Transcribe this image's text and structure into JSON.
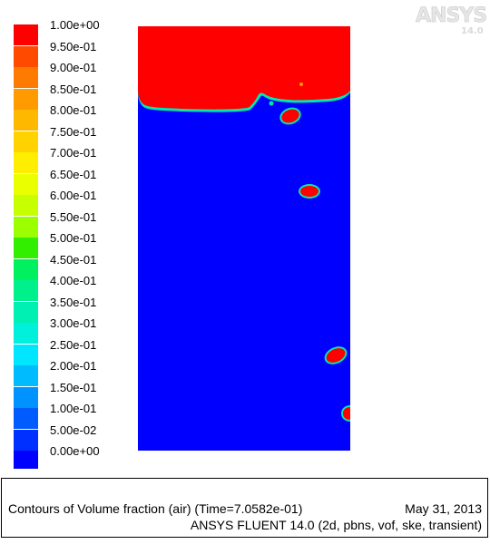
{
  "legend": {
    "labels": [
      "1.00e+00",
      "9.50e-01",
      "9.00e-01",
      "8.50e-01",
      "8.00e-01",
      "7.50e-01",
      "7.00e-01",
      "6.50e-01",
      "6.00e-01",
      "5.50e-01",
      "5.00e-01",
      "4.50e-01",
      "4.00e-01",
      "3.50e-01",
      "3.00e-01",
      "2.50e-01",
      "2.00e-01",
      "1.50e-01",
      "1.00e-01",
      "5.00e-02",
      "0.00e+00"
    ],
    "colors": [
      "#ff0000",
      "#ff4a00",
      "#ff7a00",
      "#ff9a00",
      "#ffb800",
      "#ffd200",
      "#ffee00",
      "#eaff00",
      "#c8ff00",
      "#9cff00",
      "#32ef00",
      "#00f060",
      "#00f08c",
      "#00f0b4",
      "#00f0dc",
      "#00e6ff",
      "#00bcff",
      "#0093ff",
      "#005cff",
      "#0030ff",
      "#0000ff"
    ]
  },
  "logo": {
    "brand": "ANSYS",
    "version": "14.0"
  },
  "plot": {
    "water_color": "#0000ff",
    "air_color": "#ff0000",
    "interface_color": "#00e8b0"
  },
  "footer": {
    "line1": "Contours of Volume fraction (air)   (Time=7.0582e-01)",
    "date": "May 31, 2013",
    "line2": "ANSYS FLUENT 14.0 (2d, pbns, vof, ske, transient)"
  }
}
